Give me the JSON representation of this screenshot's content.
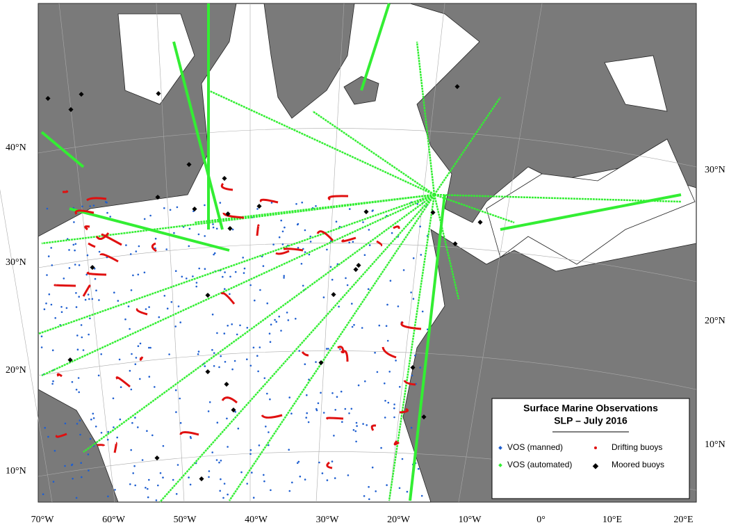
{
  "map": {
    "title": [
      "Surface Marine Observations",
      "SLP – July 2016"
    ],
    "legend": [
      {
        "label": "VOS (manned)",
        "color": "#1f5fd0"
      },
      {
        "label": "Drifting buoys",
        "color": "#e01010"
      },
      {
        "label": "VOS (automated)",
        "color": "#33ee33"
      },
      {
        "label": "Moored buoys",
        "color": "#000000"
      }
    ],
    "lat_labels_left": [
      "40°N",
      "30°N",
      "20°N",
      "10°N"
    ],
    "lat_labels_right": [
      "30°N",
      "20°N",
      "10°N"
    ],
    "lon_labels": [
      "70°W",
      "60°W",
      "50°W",
      "40°W",
      "30°W",
      "20°W",
      "10°W",
      "0°",
      "10°E",
      "20°E"
    ]
  }
}
